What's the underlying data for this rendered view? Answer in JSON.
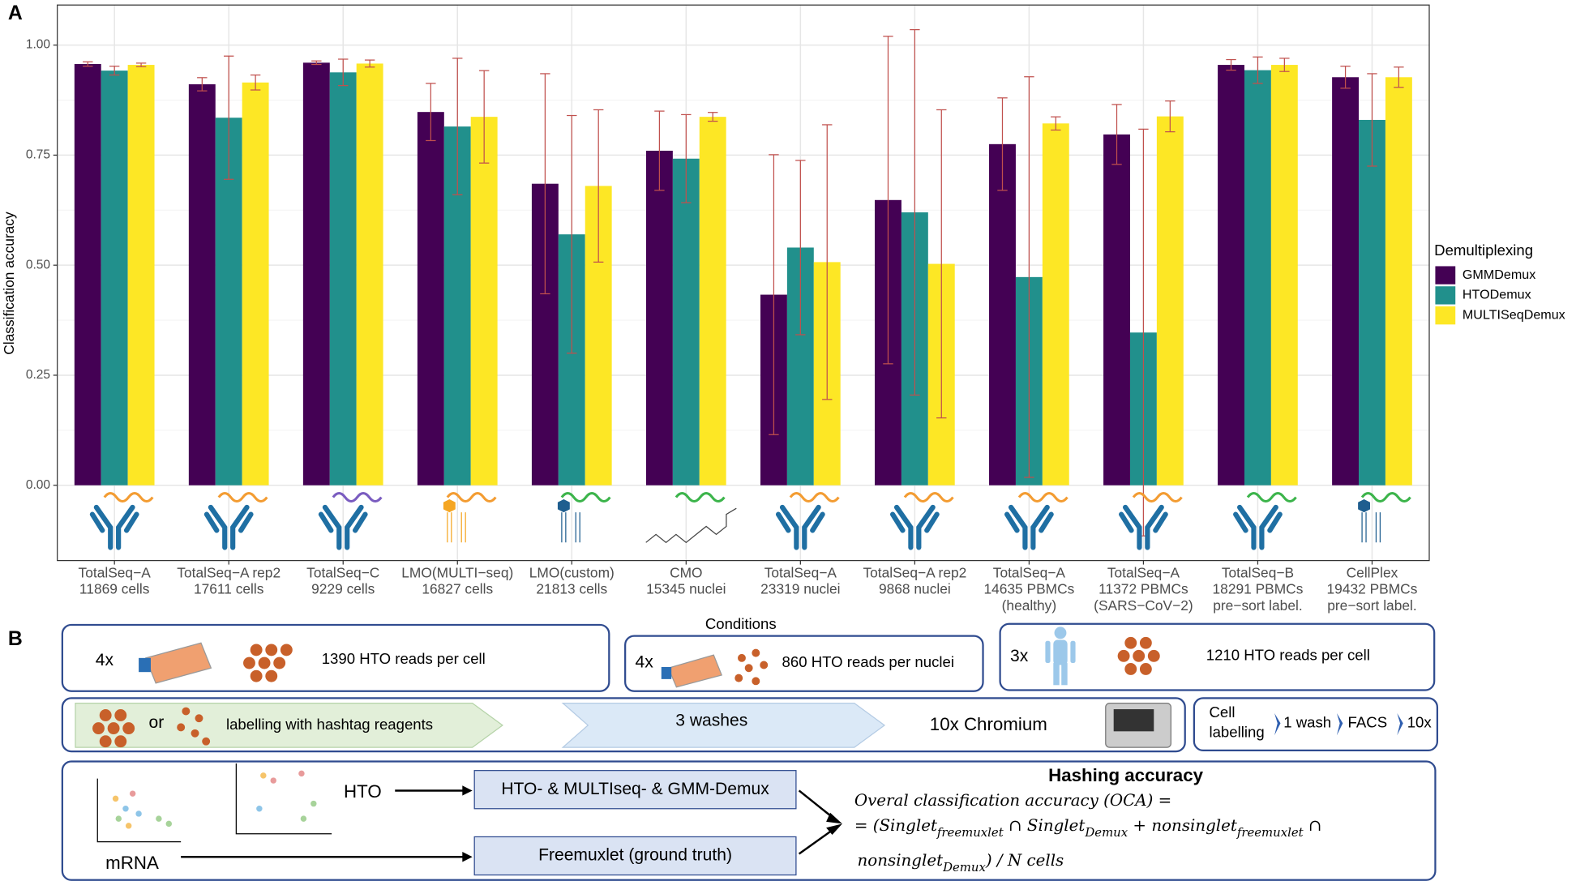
{
  "chart_data": {
    "type": "bar",
    "panel_label": "A",
    "ylabel": "Classification accuracy",
    "categories": [
      [
        "TotalSeq−A",
        "11869 cells"
      ],
      [
        "TotalSeq−A rep2",
        "17611 cells"
      ],
      [
        "TotalSeq−C",
        "9229 cells"
      ],
      [
        "LMO(MULTI−seq)",
        "16827 cells"
      ],
      [
        "LMO(custom)",
        "21813 cells"
      ],
      [
        "CMO",
        "15345 nuclei"
      ],
      [
        "TotalSeq−A",
        "23319 nuclei"
      ],
      [
        "TotalSeq−A rep2",
        "9868 nuclei"
      ],
      [
        "TotalSeq−A",
        "14635 PBMCs",
        "(healthy)"
      ],
      [
        "TotalSeq−A",
        "11372 PBMCs",
        "(SARS−CoV−2)"
      ],
      [
        "TotalSeq−B",
        "18291 PBMCs",
        "pre−sort label."
      ],
      [
        "CellPlex",
        "19432 PBMCs",
        "pre−sort label."
      ]
    ],
    "series": [
      {
        "name": "GMMDemux",
        "color": "#440154",
        "values": [
          0.957,
          0.911,
          0.96,
          0.848,
          0.685,
          0.76,
          0.433,
          0.648,
          0.775,
          0.797,
          0.955,
          0.927
        ],
        "errors": [
          0.005,
          0.015,
          0.004,
          0.065,
          0.25,
          0.09,
          0.318,
          0.372,
          0.105,
          0.068,
          0.012,
          0.025
        ]
      },
      {
        "name": "HTODemux",
        "color": "#21908c",
        "values": [
          0.942,
          0.835,
          0.938,
          0.815,
          0.57,
          0.742,
          0.54,
          0.62,
          0.473,
          0.347,
          0.943,
          0.83
        ],
        "errors": [
          0.01,
          0.14,
          0.03,
          0.155,
          0.27,
          0.1,
          0.198,
          0.415,
          0.455,
          0.462,
          0.03,
          0.105
        ]
      },
      {
        "name": "MULTISeqDemux",
        "color": "#fde725",
        "values": [
          0.955,
          0.915,
          0.958,
          0.837,
          0.68,
          0.837,
          0.507,
          0.503,
          0.822,
          0.838,
          0.955,
          0.927
        ],
        "errors": [
          0.004,
          0.017,
          0.008,
          0.105,
          0.173,
          0.01,
          0.312,
          0.35,
          0.015,
          0.035,
          0.015,
          0.023
        ]
      }
    ],
    "error_color": "#c0504d",
    "legend_title": "Demultiplexing",
    "legend": "right",
    "grid": true,
    "ylim": [
      -0.171,
      1.091
    ],
    "yticks": [
      {
        "value": 0,
        "label": "0.00"
      },
      {
        "value": 0.25,
        "label": "0.25"
      },
      {
        "value": 0.5,
        "label": "0.50"
      },
      {
        "value": 0.75,
        "label": "0.75"
      },
      {
        "value": 1,
        "label": "1.00"
      }
    ]
  },
  "panel_b": {
    "label": "B",
    "conditions_title": "Conditions",
    "conditions": [
      {
        "multiplier": "4x",
        "reads": "1390 HTO reads per cell"
      },
      {
        "multiplier": "4x",
        "reads": "860 HTO reads per nuclei"
      },
      {
        "multiplier": "3x",
        "reads": "1210 HTO reads per cell"
      }
    ],
    "workflow": {
      "or": "or",
      "labelling": "labelling with hashtag reagents",
      "washes": "3 washes",
      "chromium": "10x Chromium"
    },
    "facs": {
      "cell": [
        "Cell",
        "labelling"
      ],
      "wash": "1 wash",
      "facs": "FACS",
      "tenx": "10x"
    },
    "analysis": {
      "hto": "HTO",
      "mrna": "mRNA",
      "demux": "HTO- & MULTIseq- & GMM-Demux",
      "freemuxlet": "Freemuxlet (ground truth)",
      "title": "Hashing accuracy",
      "formula": [
        [
          "Overal classification accuracy (OCA) ="
        ],
        [
          "= (Singlet",
          "freemuxlet",
          " ∩ Singlet",
          "Demux",
          " + nonsinglet",
          "freemuxlet",
          " ∩"
        ],
        [
          "nonsinglet",
          "Demux",
          ") / N cells"
        ]
      ]
    }
  }
}
